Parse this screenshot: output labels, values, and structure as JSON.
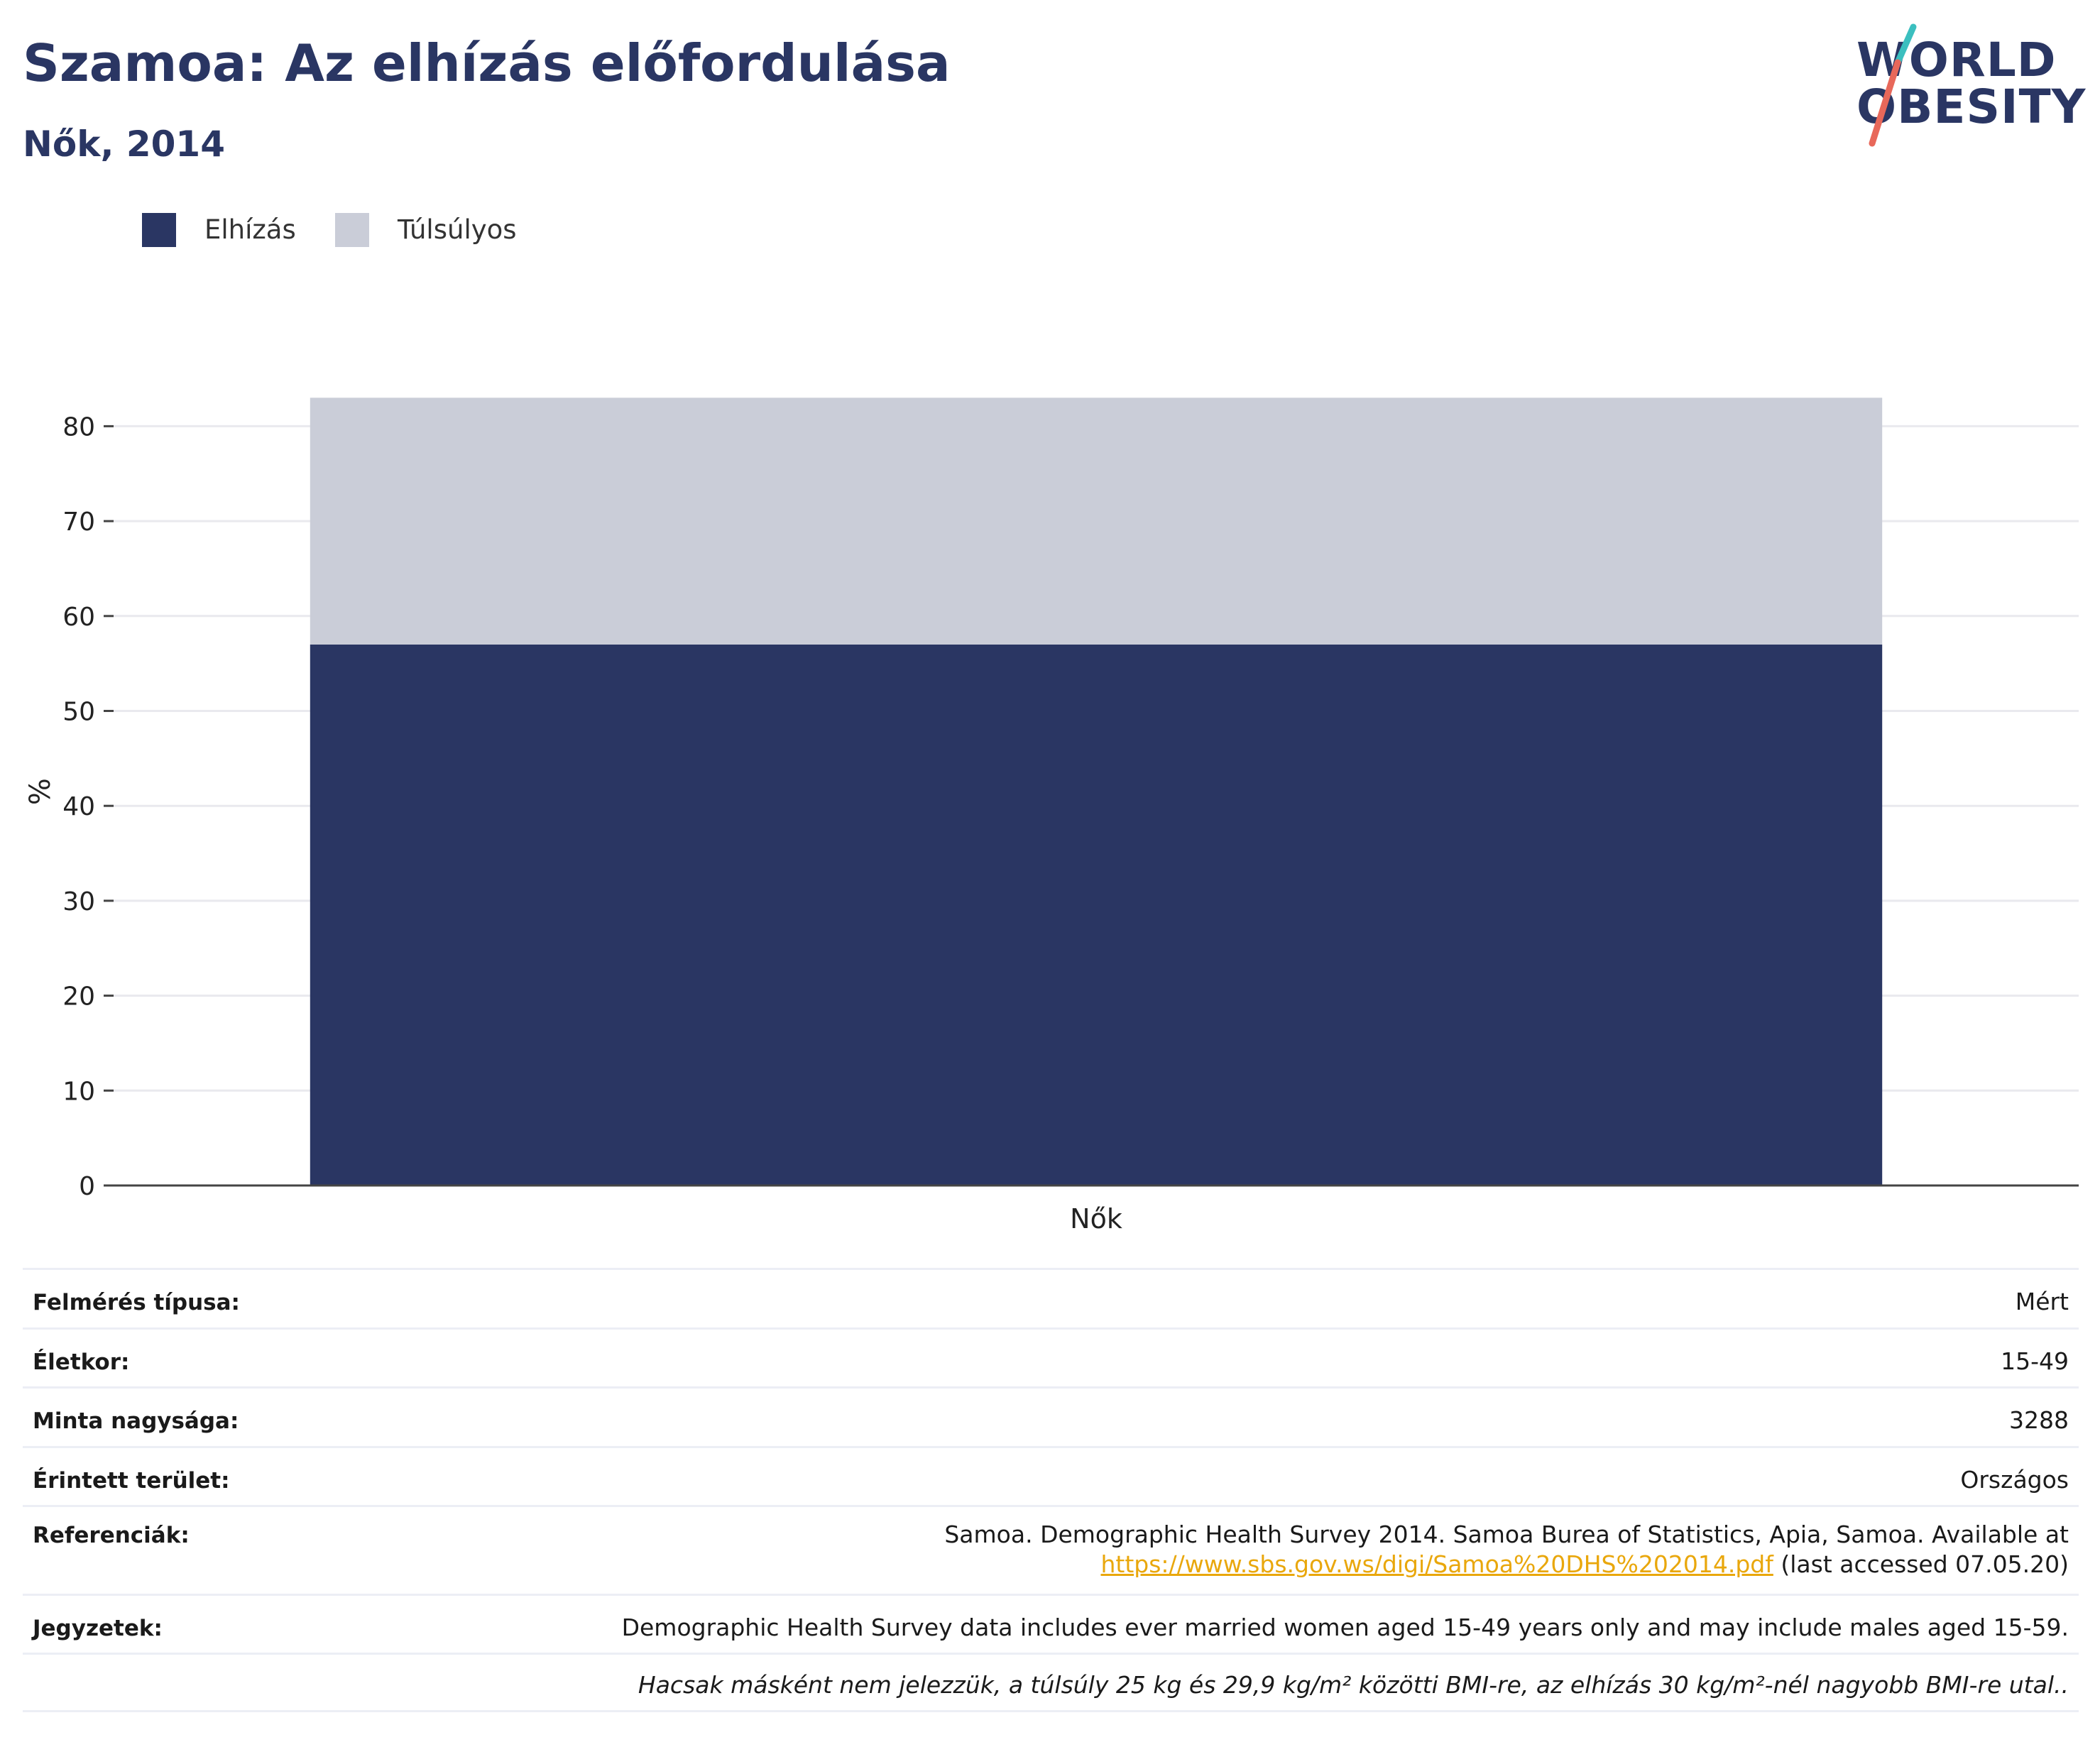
{
  "title": "Szamoa: Az elhízás előfordulása",
  "subtitle": "Nők, 2014",
  "logo": {
    "line1": "WORLD",
    "line2": "OBESITY"
  },
  "colors": {
    "obesity": "#2a3663",
    "overweight": "#cacdd8",
    "grid": "#e9e9ee",
    "axis": "#444444",
    "link": "#e9a70c",
    "logo_teal": "#3bbfbf",
    "logo_coral": "#e8685a"
  },
  "chart_data": {
    "type": "bar",
    "stacked": true,
    "categories": [
      "Nők"
    ],
    "series": [
      {
        "name": "Elhízás",
        "values": [
          57
        ]
      },
      {
        "name": "Túlsúlyos",
        "values": [
          26
        ]
      }
    ],
    "ylabel": "%",
    "xlabel": "",
    "ylim": [
      0,
      83
    ],
    "yticks": [
      0,
      10,
      20,
      30,
      40,
      50,
      60,
      70,
      80
    ],
    "grid": true,
    "legend_position": "top-left"
  },
  "info": [
    {
      "label": "Felmérés típusa:",
      "value": "Mért"
    },
    {
      "label": "Életkor:",
      "value": "15-49"
    },
    {
      "label": "Minta nagysága:",
      "value": "3288"
    },
    {
      "label": "Érintett terület:",
      "value": "Országos"
    },
    {
      "label": "Referenciák:",
      "value": "Samoa. Demographic Health Survey 2014. Samoa Burea of Statistics, Apia, Samoa. Available at",
      "link": "https://www.sbs.gov.ws/digi/Samoa%20DHS%202014.pdf",
      "suffix": " (last accessed 07.05.20)"
    },
    {
      "label": "Jegyzetek:",
      "value": "Demographic Health Survey data includes ever married women aged 15-49 years only and may include males aged 15-59."
    },
    {
      "label": "",
      "value": "Hacsak másként nem jelezzük, a túlsúly 25 kg és 29,9 kg/m² közötti BMI-re, az elhízás 30 kg/m²-nél nagyobb BMI-re utal.."
    }
  ]
}
